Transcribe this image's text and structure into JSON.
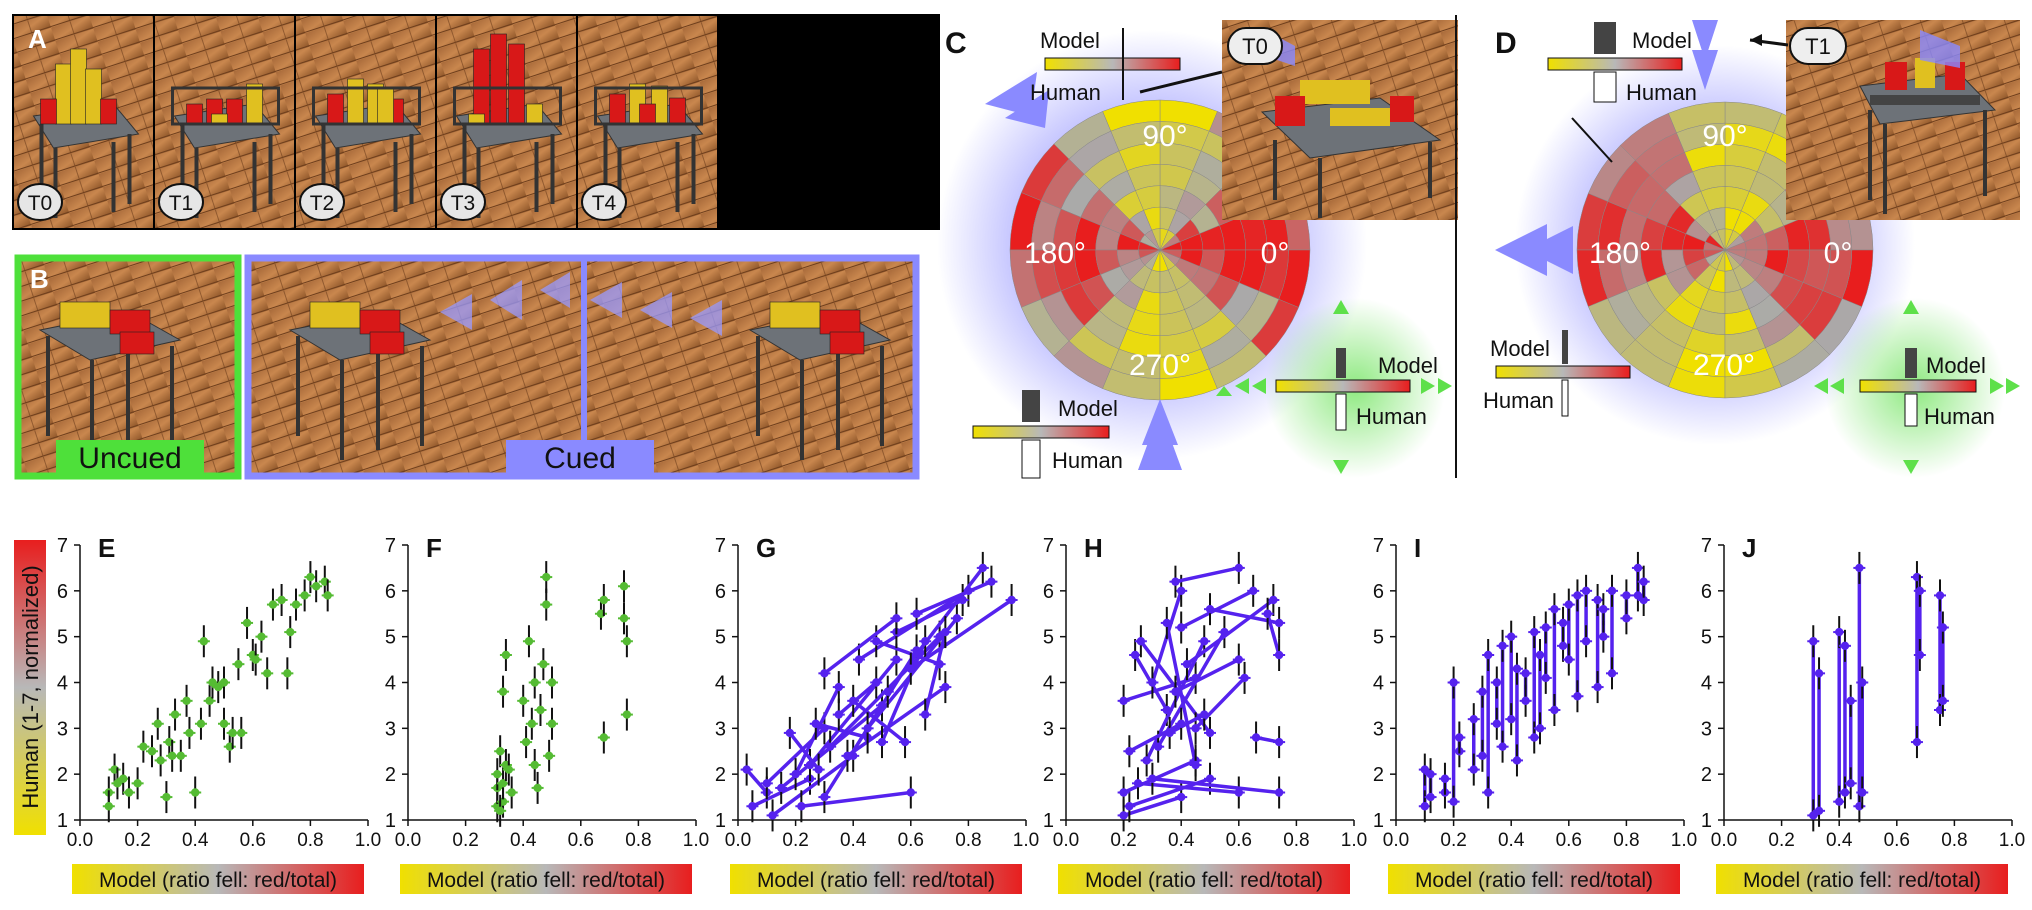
{
  "panel_labels": {
    "A": "A",
    "B": "B",
    "C": "C",
    "D": "D",
    "E": "E",
    "F": "F",
    "G": "G",
    "H": "H",
    "I": "I",
    "J": "J"
  },
  "a_badges": [
    "T0",
    "T1",
    "T2",
    "T3",
    "T4"
  ],
  "b_labels": {
    "uncued": "Uncued",
    "cued": "Cued"
  },
  "polar": {
    "angles": [
      "90°",
      "180°",
      "0°",
      "270°"
    ],
    "model": "Model",
    "human": "Human",
    "badge_c": "T0",
    "badge_d": "T1"
  },
  "axes": {
    "ylabel": "Human (1-7, normalized)",
    "xlabel": "Model (ratio fell: red/total)",
    "xticks": [
      "0.0",
      "0.2",
      "0.4",
      "0.6",
      "0.8",
      "1.0"
    ],
    "yticks": [
      "1",
      "2",
      "3",
      "4",
      "5",
      "6",
      "7"
    ]
  },
  "colors": {
    "green": "#55bb33",
    "purple": "#5522ee",
    "cue_blue": "#8a8aff",
    "uncued_green": "#4ee03a",
    "yellow": "#f0e000",
    "red": "#e81e1e"
  },
  "chart_data": [
    {
      "panel": "E",
      "type": "scatter",
      "xlim": [
        0,
        1
      ],
      "ylim": [
        1,
        7
      ],
      "xlabel": "Model (ratio fell: red/total)",
      "ylabel": "Human (1-7, normalized)",
      "points": [
        [
          0.1,
          1.6
        ],
        [
          0.1,
          1.3
        ],
        [
          0.12,
          2.1
        ],
        [
          0.13,
          1.8
        ],
        [
          0.15,
          1.9
        ],
        [
          0.17,
          1.6
        ],
        [
          0.2,
          1.8
        ],
        [
          0.22,
          2.6
        ],
        [
          0.25,
          2.5
        ],
        [
          0.27,
          3.1
        ],
        [
          0.28,
          2.3
        ],
        [
          0.3,
          1.5
        ],
        [
          0.31,
          2.7
        ],
        [
          0.32,
          2.4
        ],
        [
          0.33,
          3.3
        ],
        [
          0.35,
          2.4
        ],
        [
          0.37,
          3.6
        ],
        [
          0.38,
          2.9
        ],
        [
          0.4,
          1.6
        ],
        [
          0.42,
          3.1
        ],
        [
          0.43,
          4.9
        ],
        [
          0.45,
          3.6
        ],
        [
          0.46,
          4.0
        ],
        [
          0.48,
          3.9
        ],
        [
          0.5,
          4.0
        ],
        [
          0.5,
          3.1
        ],
        [
          0.52,
          2.6
        ],
        [
          0.53,
          2.9
        ],
        [
          0.55,
          4.4
        ],
        [
          0.56,
          2.9
        ],
        [
          0.58,
          5.3
        ],
        [
          0.6,
          4.6
        ],
        [
          0.61,
          4.5
        ],
        [
          0.63,
          5.0
        ],
        [
          0.65,
          4.2
        ],
        [
          0.67,
          5.7
        ],
        [
          0.7,
          5.8
        ],
        [
          0.72,
          4.2
        ],
        [
          0.73,
          5.1
        ],
        [
          0.75,
          5.7
        ],
        [
          0.78,
          5.9
        ],
        [
          0.8,
          6.3
        ],
        [
          0.82,
          6.1
        ],
        [
          0.85,
          6.2
        ],
        [
          0.86,
          5.9
        ]
      ]
    },
    {
      "panel": "F",
      "type": "scatter",
      "xlim": [
        0,
        1
      ],
      "ylim": [
        1,
        7
      ],
      "xlabel": "Model (ratio fell: red/total)",
      "ylabel": "",
      "points": [
        [
          0.31,
          1.3
        ],
        [
          0.31,
          1.7
        ],
        [
          0.31,
          2.0
        ],
        [
          0.32,
          2.5
        ],
        [
          0.33,
          1.4
        ],
        [
          0.33,
          1.8
        ],
        [
          0.34,
          2.2
        ],
        [
          0.32,
          1.2
        ],
        [
          0.33,
          3.8
        ],
        [
          0.34,
          4.6
        ],
        [
          0.35,
          2.1
        ],
        [
          0.36,
          1.6
        ],
        [
          0.4,
          3.6
        ],
        [
          0.41,
          2.7
        ],
        [
          0.42,
          4.9
        ],
        [
          0.43,
          3.1
        ],
        [
          0.44,
          2.2
        ],
        [
          0.44,
          4.0
        ],
        [
          0.45,
          1.7
        ],
        [
          0.46,
          3.4
        ],
        [
          0.47,
          4.4
        ],
        [
          0.48,
          5.7
        ],
        [
          0.48,
          6.3
        ],
        [
          0.49,
          2.4
        ],
        [
          0.5,
          3.1
        ],
        [
          0.5,
          4.0
        ],
        [
          0.67,
          5.5
        ],
        [
          0.68,
          5.8
        ],
        [
          0.68,
          2.8
        ],
        [
          0.75,
          6.1
        ],
        [
          0.75,
          5.4
        ],
        [
          0.76,
          3.3
        ],
        [
          0.76,
          4.9
        ]
      ]
    },
    {
      "panel": "G",
      "type": "scatter",
      "xlim": [
        0,
        1
      ],
      "ylim": [
        1,
        7
      ],
      "xlabel": "Model (ratio fell: red/total)",
      "ylabel": "",
      "segments": [
        [
          0.03,
          2.1,
          0.1,
          1.6
        ],
        [
          0.05,
          1.3,
          0.25,
          1.9
        ],
        [
          0.1,
          1.8,
          0.3,
          3.0
        ],
        [
          0.12,
          1.1,
          0.4,
          2.4
        ],
        [
          0.15,
          1.7,
          0.5,
          3.5
        ],
        [
          0.2,
          2.0,
          0.35,
          3.9
        ],
        [
          0.22,
          1.3,
          0.6,
          1.6
        ],
        [
          0.25,
          2.2,
          0.55,
          4.5
        ],
        [
          0.27,
          3.1,
          0.45,
          2.8
        ],
        [
          0.3,
          1.5,
          0.62,
          4.7
        ],
        [
          0.32,
          2.6,
          0.7,
          5.0
        ],
        [
          0.35,
          3.3,
          0.48,
          4.0
        ],
        [
          0.38,
          2.4,
          0.72,
          3.9
        ],
        [
          0.4,
          3.6,
          0.58,
          2.7
        ],
        [
          0.42,
          4.5,
          0.8,
          6.0
        ],
        [
          0.45,
          3.0,
          0.76,
          5.4
        ],
        [
          0.48,
          4.9,
          0.7,
          4.4
        ],
        [
          0.5,
          2.7,
          0.65,
          4.9
        ],
        [
          0.52,
          3.8,
          0.85,
          6.5
        ],
        [
          0.55,
          5.1,
          0.78,
          5.8
        ],
        [
          0.6,
          4.3,
          0.95,
          5.8
        ],
        [
          0.62,
          5.5,
          0.88,
          6.2
        ],
        [
          0.65,
          3.3,
          0.72,
          5.1
        ],
        [
          0.3,
          4.2,
          0.55,
          5.4
        ],
        [
          0.18,
          2.9,
          0.28,
          2.1
        ]
      ]
    },
    {
      "panel": "H",
      "type": "scatter",
      "xlim": [
        0,
        1
      ],
      "ylim": [
        1,
        7
      ],
      "xlabel": "Model (ratio fell: red/total)",
      "ylabel": "",
      "segments": [
        [
          0.2,
          1.1,
          0.4,
          1.5
        ],
        [
          0.22,
          1.3,
          0.5,
          1.9
        ],
        [
          0.2,
          1.6,
          0.45,
          2.3
        ],
        [
          0.25,
          1.8,
          0.6,
          1.6
        ],
        [
          0.2,
          3.6,
          0.45,
          4.1
        ],
        [
          0.24,
          4.6,
          0.35,
          3.4
        ],
        [
          0.26,
          4.9,
          0.5,
          2.9
        ],
        [
          0.28,
          2.3,
          0.48,
          4.9
        ],
        [
          0.3,
          4.0,
          0.4,
          6.0
        ],
        [
          0.32,
          2.6,
          0.55,
          5.1
        ],
        [
          0.35,
          5.3,
          0.45,
          2.2
        ],
        [
          0.38,
          3.8,
          0.6,
          4.5
        ],
        [
          0.4,
          5.2,
          0.65,
          6.0
        ],
        [
          0.38,
          6.2,
          0.6,
          6.5
        ],
        [
          0.42,
          4.4,
          0.72,
          5.8
        ],
        [
          0.45,
          3.0,
          0.62,
          4.1
        ],
        [
          0.5,
          5.6,
          0.74,
          5.3
        ],
        [
          0.3,
          1.9,
          0.74,
          1.6
        ],
        [
          0.36,
          2.9,
          0.48,
          3.3
        ],
        [
          0.22,
          2.5,
          0.4,
          3.1
        ],
        [
          0.66,
          2.8,
          0.74,
          2.7
        ],
        [
          0.7,
          5.5,
          0.74,
          4.6
        ]
      ]
    },
    {
      "panel": "I",
      "type": "scatter",
      "xlim": [
        0,
        1
      ],
      "ylim": [
        1,
        7
      ],
      "xlabel": "Model (ratio fell: red/total)",
      "ylabel": "",
      "vertical": [
        [
          0.1,
          1.3,
          2.1
        ],
        [
          0.12,
          1.5,
          2.0
        ],
        [
          0.17,
          1.6,
          1.9
        ],
        [
          0.2,
          1.4,
          4.0
        ],
        [
          0.22,
          2.5,
          2.8
        ],
        [
          0.27,
          2.1,
          3.2
        ],
        [
          0.3,
          2.4,
          3.8
        ],
        [
          0.32,
          1.6,
          4.6
        ],
        [
          0.35,
          3.1,
          4.0
        ],
        [
          0.37,
          2.6,
          4.8
        ],
        [
          0.4,
          3.2,
          5.0
        ],
        [
          0.42,
          2.3,
          4.3
        ],
        [
          0.45,
          3.6,
          4.2
        ],
        [
          0.48,
          2.8,
          5.1
        ],
        [
          0.5,
          3.0,
          4.6
        ],
        [
          0.52,
          4.1,
          5.2
        ],
        [
          0.55,
          3.4,
          5.6
        ],
        [
          0.58,
          4.8,
          5.3
        ],
        [
          0.6,
          4.5,
          5.7
        ],
        [
          0.63,
          3.7,
          5.9
        ],
        [
          0.66,
          4.9,
          6.0
        ],
        [
          0.7,
          3.9,
          5.8
        ],
        [
          0.72,
          5.0,
          5.6
        ],
        [
          0.75,
          4.2,
          6.0
        ],
        [
          0.8,
          5.4,
          5.9
        ],
        [
          0.84,
          5.9,
          6.5
        ],
        [
          0.86,
          5.8,
          6.2
        ]
      ]
    },
    {
      "panel": "J",
      "type": "scatter",
      "xlim": [
        0,
        1
      ],
      "ylim": [
        1,
        7
      ],
      "xlabel": "Model (ratio fell: red/total)",
      "ylabel": "",
      "vertical": [
        [
          0.31,
          1.1,
          4.9
        ],
        [
          0.33,
          1.2,
          4.2
        ],
        [
          0.4,
          1.4,
          5.1
        ],
        [
          0.42,
          1.6,
          4.8
        ],
        [
          0.44,
          1.8,
          3.6
        ],
        [
          0.47,
          1.3,
          6.5
        ],
        [
          0.48,
          1.6,
          4.0
        ],
        [
          0.67,
          2.7,
          6.3
        ],
        [
          0.68,
          4.6,
          6.0
        ],
        [
          0.75,
          3.4,
          5.9
        ],
        [
          0.76,
          3.6,
          5.2
        ]
      ]
    }
  ]
}
